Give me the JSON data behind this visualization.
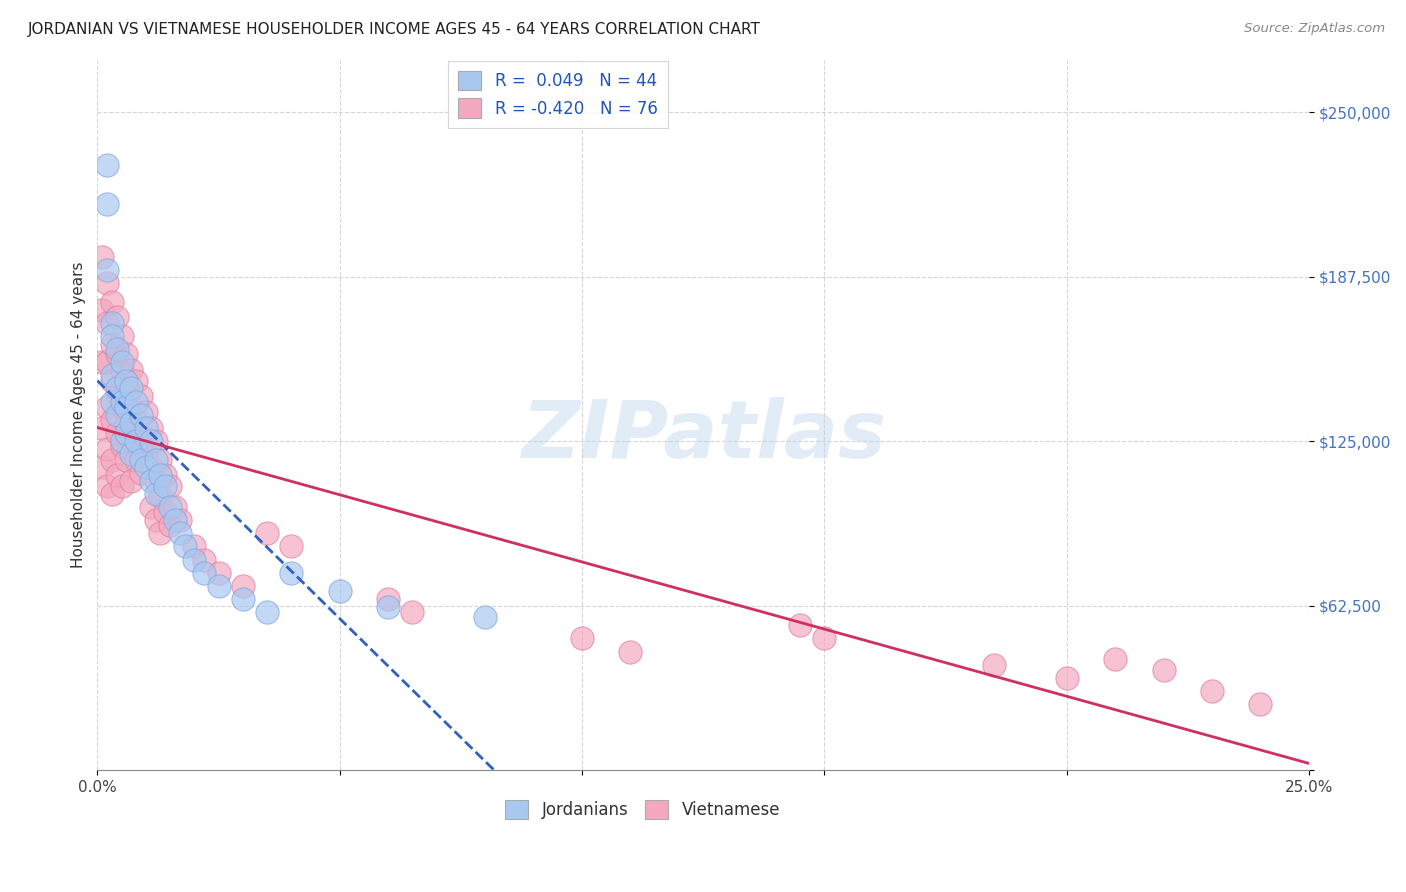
{
  "title": "JORDANIAN VS VIETNAMESE HOUSEHOLDER INCOME AGES 45 - 64 YEARS CORRELATION CHART",
  "source": "Source: ZipAtlas.com",
  "ylabel": "Householder Income Ages 45 - 64 years",
  "xlim": [
    0.0,
    0.25
  ],
  "ylim": [
    0,
    270000
  ],
  "xticks": [
    0.0,
    0.05,
    0.1,
    0.15,
    0.2,
    0.25
  ],
  "xticklabels": [
    "0.0%",
    "",
    "",
    "",
    "",
    "25.0%"
  ],
  "yticks": [
    0,
    62500,
    125000,
    187500,
    250000
  ],
  "yticklabels": [
    "",
    "$62,500",
    "$125,000",
    "$187,500",
    "$250,000"
  ],
  "legend_R1": "R =  0.049",
  "legend_N1": "N = 44",
  "legend_R2": "R = -0.420",
  "legend_N2": "N = 76",
  "blue_color": "#A8C8F0",
  "pink_color": "#F4A8C0",
  "line_blue_color": "#3060C0",
  "line_pink_color": "#D03060",
  "watermark": "ZIPatlas",
  "jordanian_x": [
    0.002,
    0.002,
    0.002,
    0.003,
    0.003,
    0.003,
    0.003,
    0.004,
    0.004,
    0.004,
    0.005,
    0.005,
    0.005,
    0.006,
    0.006,
    0.006,
    0.007,
    0.007,
    0.007,
    0.008,
    0.008,
    0.009,
    0.009,
    0.01,
    0.01,
    0.011,
    0.011,
    0.012,
    0.012,
    0.013,
    0.014,
    0.015,
    0.016,
    0.017,
    0.018,
    0.02,
    0.022,
    0.025,
    0.03,
    0.035,
    0.04,
    0.05,
    0.06,
    0.08
  ],
  "jordanian_y": [
    230000,
    215000,
    190000,
    170000,
    165000,
    150000,
    140000,
    160000,
    145000,
    135000,
    155000,
    140000,
    125000,
    148000,
    138000,
    128000,
    145000,
    132000,
    120000,
    140000,
    125000,
    135000,
    118000,
    130000,
    115000,
    125000,
    110000,
    118000,
    105000,
    112000,
    108000,
    100000,
    95000,
    90000,
    85000,
    80000,
    75000,
    70000,
    65000,
    60000,
    75000,
    68000,
    62000,
    58000
  ],
  "vietnamese_x": [
    0.001,
    0.001,
    0.001,
    0.001,
    0.001,
    0.002,
    0.002,
    0.002,
    0.002,
    0.002,
    0.002,
    0.003,
    0.003,
    0.003,
    0.003,
    0.003,
    0.003,
    0.004,
    0.004,
    0.004,
    0.004,
    0.004,
    0.005,
    0.005,
    0.005,
    0.005,
    0.005,
    0.006,
    0.006,
    0.006,
    0.006,
    0.007,
    0.007,
    0.007,
    0.007,
    0.008,
    0.008,
    0.008,
    0.009,
    0.009,
    0.009,
    0.01,
    0.01,
    0.011,
    0.011,
    0.011,
    0.012,
    0.012,
    0.012,
    0.013,
    0.013,
    0.013,
    0.014,
    0.014,
    0.015,
    0.015,
    0.016,
    0.017,
    0.02,
    0.022,
    0.025,
    0.03,
    0.035,
    0.04,
    0.06,
    0.065,
    0.1,
    0.11,
    0.145,
    0.15,
    0.185,
    0.2,
    0.21,
    0.22,
    0.23,
    0.24
  ],
  "vietnamese_y": [
    195000,
    175000,
    155000,
    130000,
    115000,
    185000,
    170000,
    155000,
    138000,
    122000,
    108000,
    178000,
    162000,
    148000,
    133000,
    118000,
    105000,
    172000,
    158000,
    143000,
    128000,
    112000,
    165000,
    152000,
    138000,
    123000,
    108000,
    158000,
    145000,
    132000,
    118000,
    152000,
    138000,
    125000,
    110000,
    148000,
    133000,
    118000,
    142000,
    128000,
    113000,
    136000,
    120000,
    130000,
    115000,
    100000,
    125000,
    110000,
    95000,
    118000,
    104000,
    90000,
    112000,
    98000,
    108000,
    93000,
    100000,
    95000,
    85000,
    80000,
    75000,
    70000,
    90000,
    85000,
    65000,
    60000,
    50000,
    45000,
    55000,
    50000,
    40000,
    35000,
    42000,
    38000,
    30000,
    25000
  ]
}
